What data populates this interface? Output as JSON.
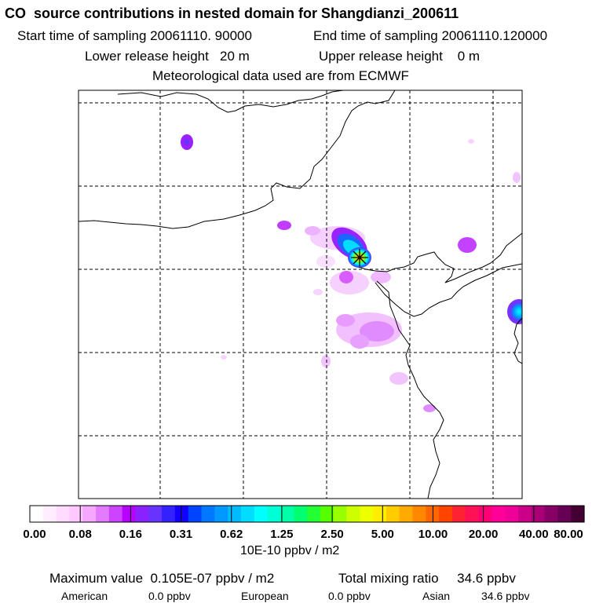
{
  "header": {
    "title": "CO  source contributions in nested domain for Shangdianzi_200611",
    "start_time": "Start time of sampling 20061110. 90000",
    "end_time": "End time of sampling 20061110.120000",
    "lower_release": "Lower release height   20 m",
    "upper_release": "Upper release height    0 m",
    "met_data": "Meteorological data used are from ECMWF"
  },
  "colorbar": {
    "ticks": [
      "0.00",
      "0.08",
      "0.16",
      "0.31",
      "0.62",
      "1.25",
      "2.50",
      "5.00",
      "10.00",
      "20.00",
      "40.00",
      "80.00"
    ],
    "units": "10E-10 ppbv / m2",
    "colors": [
      "#ffffff",
      "#ffeeff",
      "#ffdcff",
      "#ffc8ff",
      "#f4a8ff",
      "#e27cff",
      "#cc44ff",
      "#b800ff",
      "#8a22ff",
      "#6633ff",
      "#3322ff",
      "#1100ff",
      "#0044ff",
      "#0077ff",
      "#0099ff",
      "#00bbff",
      "#00ddff",
      "#00ffff",
      "#00ffd5",
      "#00ffa8",
      "#00ff70",
      "#22ff33",
      "#55ff00",
      "#99ff00",
      "#ccff00",
      "#eeff00",
      "#ffee00",
      "#ffcc00",
      "#ffaa00",
      "#ff8800",
      "#ff6600",
      "#ff4400",
      "#ff2233",
      "#ff1155",
      "#ff0077",
      "#ff0099",
      "#ee0099",
      "#cc0088",
      "#aa0077",
      "#880066",
      "#660055",
      "#440033"
    ]
  },
  "footer": {
    "max_value": "Maximum value  0.105E-07 ppbv / m2",
    "total": "Total mixing ratio     34.6 ppbv",
    "american_label": "American",
    "american_value": "0.0 ppbv",
    "european_label": "European",
    "european_value": "0.0 ppbv",
    "asian_label": "Asian",
    "asian_value": "34.6 ppbv"
  },
  "map": {
    "receptor_marker": "receptor-star"
  }
}
